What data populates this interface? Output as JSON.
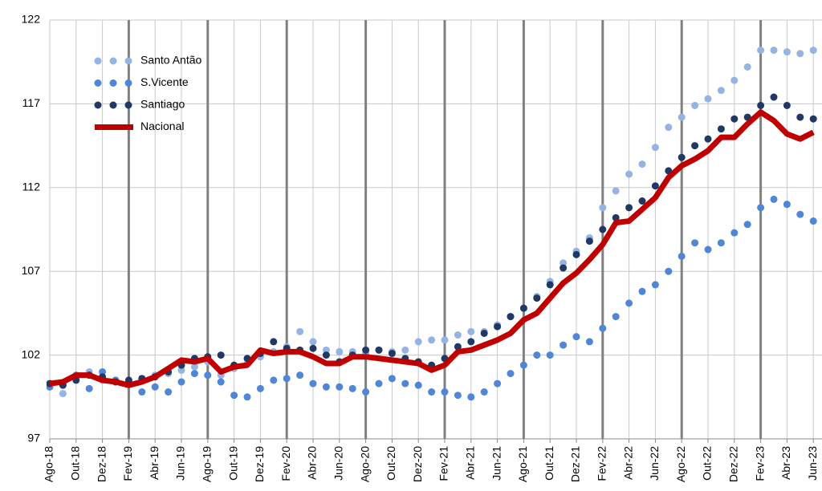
{
  "chart_data": {
    "type": "line",
    "categories": [
      "Ago-18",
      null,
      "Out-18",
      null,
      "Dez-18",
      null,
      "Fev-19",
      null,
      "Abr-19",
      null,
      "Jun-19",
      null,
      "Ago-19",
      null,
      "Out-19",
      null,
      "Dez-19",
      null,
      "Fev-20",
      null,
      "Abr-20",
      null,
      "Jun-20",
      null,
      "Ago-20",
      null,
      "Out-20",
      null,
      "Dez-20",
      null,
      "Fev-21",
      null,
      "Abr-21",
      null,
      "Jun-21",
      null,
      "Ago-21",
      null,
      "Out-21",
      null,
      "Dez-21",
      null,
      "Fev-22",
      null,
      "Abr-22",
      null,
      "Jun-22",
      null,
      "Ago-22",
      null,
      "Out-22",
      null,
      "Dez-22",
      null,
      "Fev-23",
      null,
      "Abr-23",
      null,
      "Jun-23"
    ],
    "ylim": [
      97,
      122
    ],
    "yticks": [
      97,
      102,
      107,
      112,
      117,
      122
    ],
    "grid": true,
    "legend": "top-left",
    "series": [
      {
        "name": "Santo Antão",
        "color": "#95b3e3",
        "style": "dotted",
        "values": [
          100.1,
          99.7,
          100.7,
          101.0,
          100.5,
          100.5,
          100.3,
          100.6,
          100.8,
          100.9,
          101.1,
          101.3,
          101.6,
          100.8,
          101.2,
          101.5,
          101.9,
          102.2,
          102.5,
          103.4,
          102.8,
          102.3,
          102.2,
          102.2,
          102.1,
          102.3,
          102.2,
          102.3,
          102.8,
          102.9,
          102.9,
          103.2,
          103.4,
          103.4,
          103.8,
          104.3,
          104.8,
          105.5,
          106.4,
          107.5,
          108.2,
          109.0,
          110.8,
          111.8,
          112.8,
          113.4,
          114.4,
          115.6,
          116.2,
          116.9,
          117.3,
          117.8,
          118.4,
          119.2,
          120.2,
          120.2,
          120.1,
          120.0,
          120.2
        ]
      },
      {
        "name": "S.Vicente",
        "color": "#4f86d6",
        "style": "dotted",
        "values": [
          100.1,
          100.3,
          100.8,
          100.0,
          101.0,
          100.5,
          100.3,
          99.8,
          100.1,
          99.8,
          100.4,
          100.9,
          100.8,
          100.4,
          99.6,
          99.5,
          100.0,
          100.5,
          100.6,
          100.8,
          100.3,
          100.1,
          100.1,
          100.0,
          99.8,
          100.3,
          100.6,
          100.3,
          100.2,
          99.8,
          99.8,
          99.6,
          99.5,
          99.8,
          100.3,
          100.9,
          101.4,
          102.0,
          102.0,
          102.6,
          103.1,
          102.8,
          103.6,
          104.3,
          105.1,
          105.8,
          106.2,
          107.0,
          107.9,
          108.7,
          108.3,
          108.7,
          109.3,
          109.8,
          110.8,
          111.3,
          111.0,
          110.4,
          110.0
        ]
      },
      {
        "name": "Santiago",
        "color": "#1f3864",
        "style": "dotted",
        "values": [
          100.3,
          100.2,
          100.5,
          100.8,
          100.7,
          100.4,
          100.5,
          100.6,
          100.7,
          101.0,
          101.4,
          101.8,
          101.9,
          102.0,
          101.4,
          101.8,
          102.1,
          102.8,
          102.4,
          102.3,
          102.4,
          102.0,
          101.6,
          102.0,
          102.3,
          102.3,
          102.1,
          101.8,
          101.6,
          101.4,
          101.8,
          102.5,
          102.8,
          103.3,
          103.7,
          104.3,
          104.8,
          105.4,
          106.2,
          107.2,
          108.0,
          108.8,
          109.5,
          110.2,
          110.8,
          111.2,
          112.1,
          113.0,
          113.8,
          114.5,
          114.9,
          115.5,
          116.1,
          116.2,
          116.9,
          117.4,
          116.9,
          116.2,
          116.1
        ]
      },
      {
        "name": "Nacional",
        "color": "#c00000",
        "style": "solid",
        "values": [
          100.3,
          100.4,
          100.8,
          100.8,
          100.5,
          100.4,
          100.2,
          100.4,
          100.7,
          101.2,
          101.7,
          101.6,
          101.8,
          101.0,
          101.3,
          101.4,
          102.3,
          102.1,
          102.2,
          102.2,
          101.9,
          101.5,
          101.5,
          101.9,
          101.9,
          101.8,
          101.7,
          101.6,
          101.5,
          101.1,
          101.4,
          102.2,
          102.3,
          102.6,
          102.9,
          103.3,
          104.1,
          104.5,
          105.4,
          106.3,
          106.9,
          107.7,
          108.6,
          109.9,
          110.0,
          110.7,
          111.4,
          112.6,
          113.3,
          113.7,
          114.2,
          115.0,
          115.0,
          115.8,
          116.5,
          116.0,
          115.2,
          114.9,
          115.3
        ]
      }
    ]
  }
}
